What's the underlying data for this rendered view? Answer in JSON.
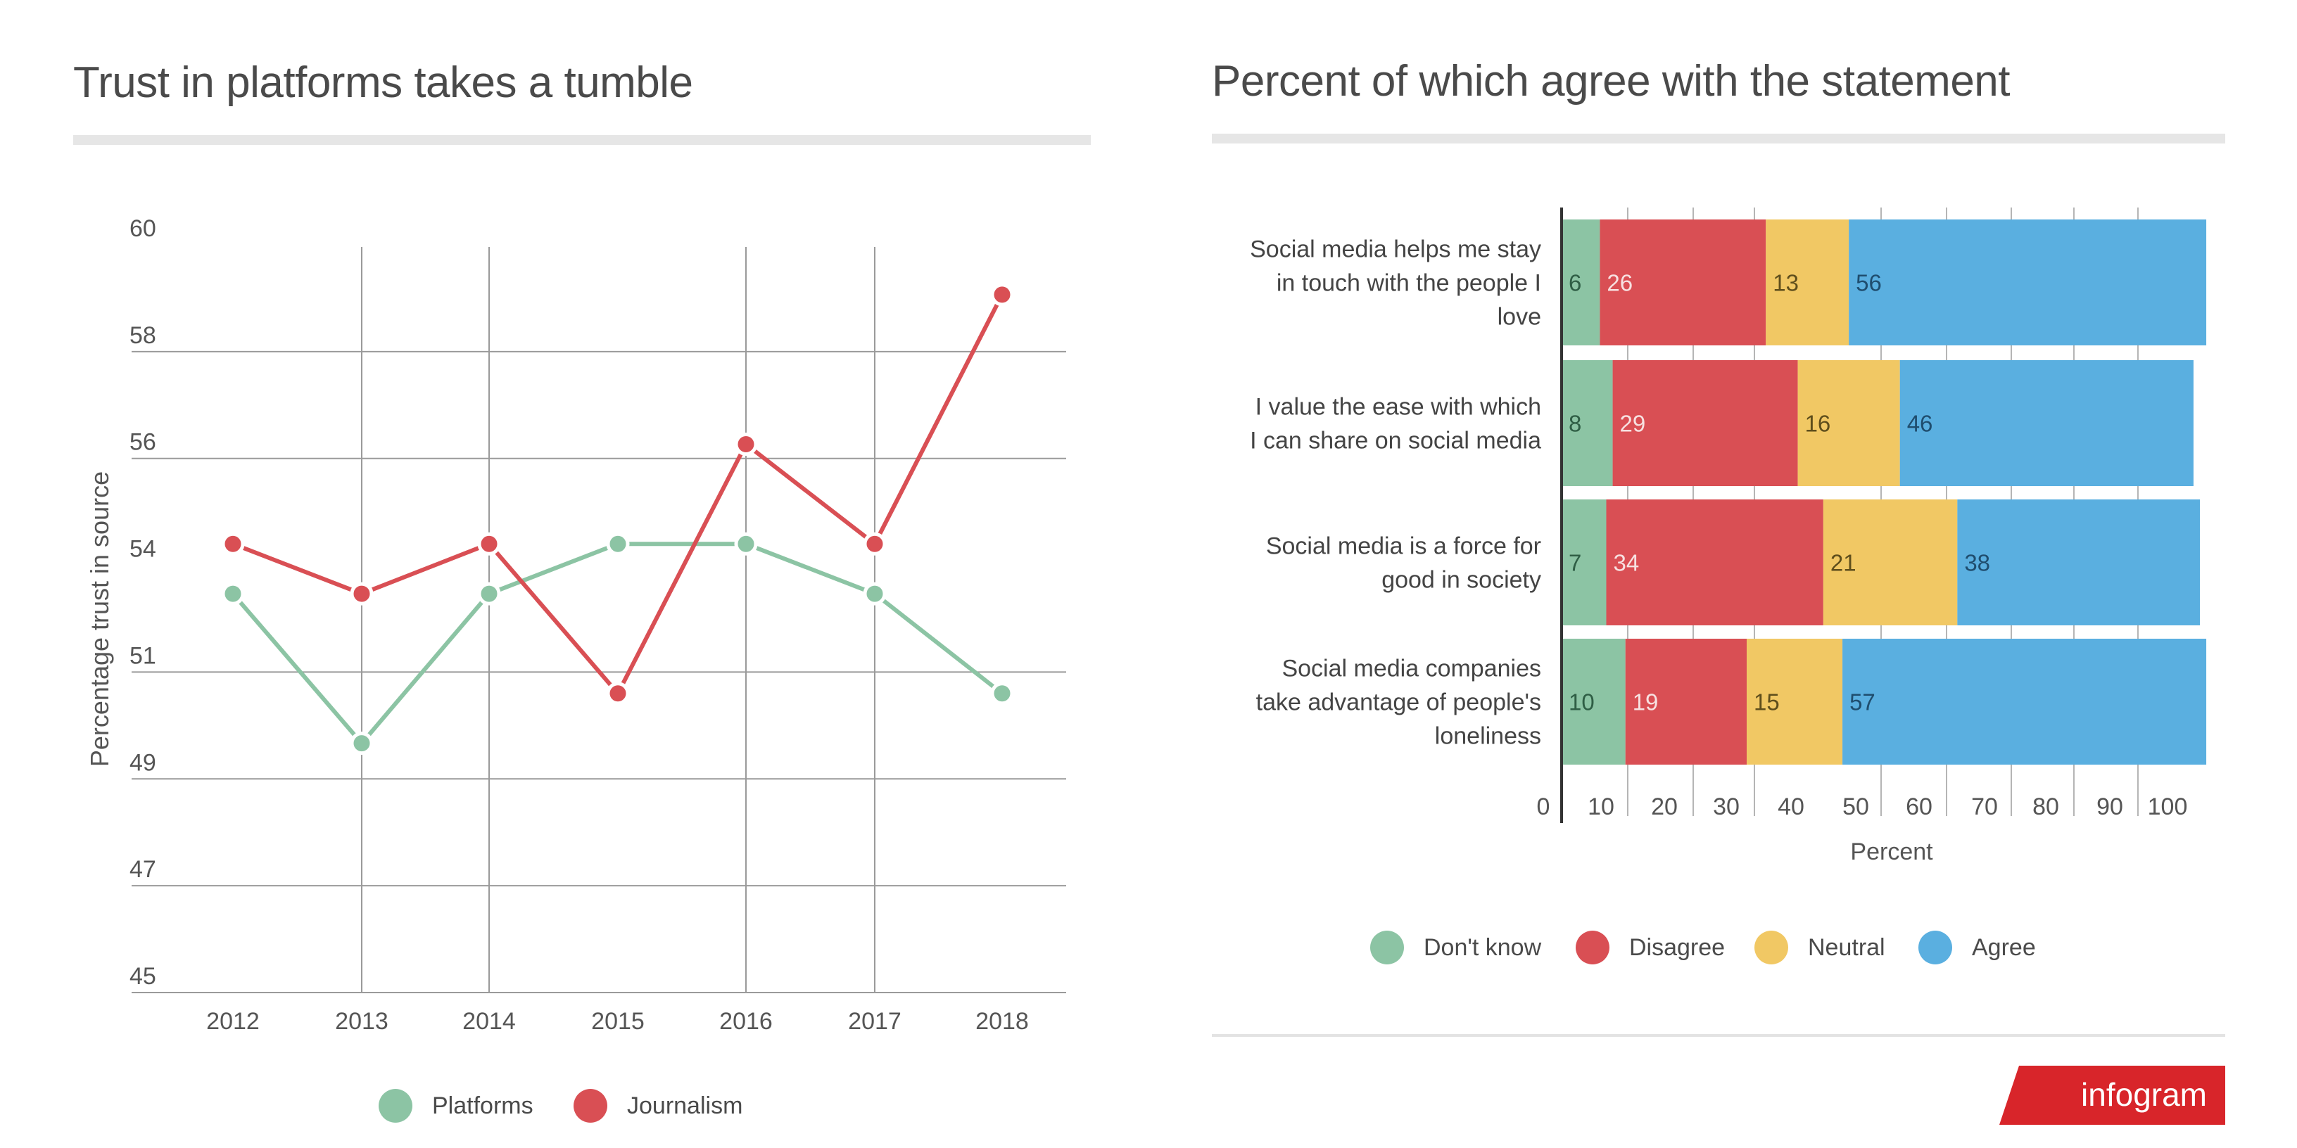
{
  "left": {
    "title": "Trust in platforms takes a tumble",
    "legend": [
      {
        "label": "Platforms",
        "color": "#8cc4a4"
      },
      {
        "label": "Journalism",
        "color": "#d94f54"
      }
    ]
  },
  "right": {
    "title": "Percent of which agree with the statement",
    "legend": [
      {
        "label": "Don't know",
        "color": "#8cc4a4"
      },
      {
        "label": "Disagree",
        "color": "#d94f54"
      },
      {
        "label": "Neutral",
        "color": "#f1c864"
      },
      {
        "label": "Agree",
        "color": "#5aafe0"
      }
    ],
    "branding": "infogram"
  },
  "chart_data": [
    {
      "type": "line",
      "title": "Trust in platforms takes a tumble",
      "xlabel": "",
      "ylabel": "Percentage trust in source",
      "x": [
        "2012",
        "2013",
        "2014",
        "2015",
        "2016",
        "2017",
        "2018"
      ],
      "ylim": [
        45,
        60
      ],
      "y_tick_labels": [
        "60",
        "58",
        "56",
        "54",
        "51",
        "49",
        "47",
        "45"
      ],
      "grid": true,
      "legend_position": "bottom",
      "series": [
        {
          "name": "Platforms",
          "color": "#8cc4a4",
          "values": [
            53,
            50,
            53,
            54,
            54,
            53,
            51
          ]
        },
        {
          "name": "Journalism",
          "color": "#d94f54",
          "values": [
            54,
            53,
            54,
            51,
            56,
            54,
            59
          ]
        }
      ]
    },
    {
      "type": "bar",
      "orientation": "horizontal",
      "stacked": true,
      "title": "Percent of which agree with the statement",
      "xlabel": "Percent",
      "ylabel": "",
      "x_tick_labels": [
        "0",
        "10",
        "20",
        "30",
        "40",
        "50",
        "60",
        "70",
        "80",
        "90",
        "100"
      ],
      "xlim": [
        0,
        100
      ],
      "legend_position": "bottom",
      "categories": [
        [
          "Social media helps me stay",
          "in touch with the people I",
          "love"
        ],
        [
          "I value the ease with which",
          "I can share on social media"
        ],
        [
          "Social media is a force for",
          "good in society"
        ],
        [
          "Social media companies",
          "take advantage of people's",
          "loneliness"
        ]
      ],
      "series": [
        {
          "name": "Don't know",
          "color": "#8cc4a4",
          "label_color": "#2f5e45",
          "values": [
            6,
            8,
            7,
            10
          ]
        },
        {
          "name": "Disagree",
          "color": "#d94f54",
          "label_color": "#f7e1e1",
          "values": [
            26,
            29,
            34,
            19
          ]
        },
        {
          "name": "Neutral",
          "color": "#f1c864",
          "label_color": "#5e4e1c",
          "values": [
            13,
            16,
            21,
            15
          ]
        },
        {
          "name": "Agree",
          "color": "#5aafe0",
          "label_color": "#1f4d6e",
          "values": [
            56,
            46,
            38,
            57
          ]
        }
      ]
    }
  ]
}
